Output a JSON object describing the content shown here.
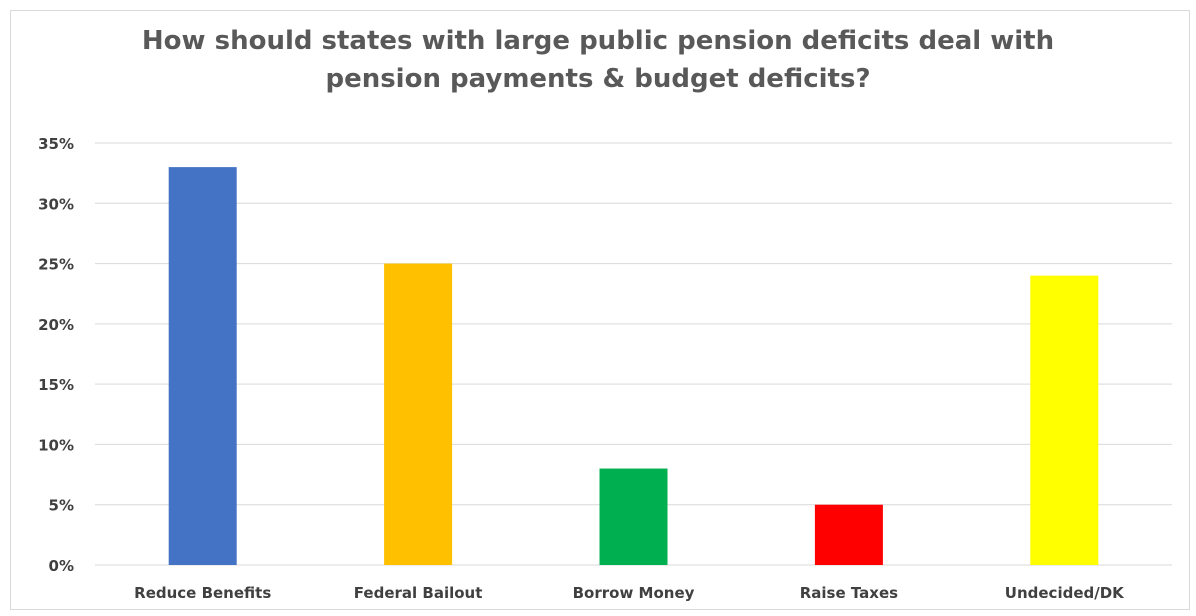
{
  "chart_data": {
    "type": "bar",
    "title_lines": [
      "How should states with large public pension deficits deal with",
      "pension payments & budget deficits?"
    ],
    "categories": [
      "Reduce Benefits",
      "Federal Bailout",
      "Borrow Money",
      "Raise Taxes",
      "Undecided/DK"
    ],
    "values": [
      33,
      25,
      8,
      5,
      24
    ],
    "colors": [
      "#4472C4",
      "#FFC000",
      "#00B050",
      "#FF0000",
      "#FFFF00"
    ],
    "ylim": [
      0,
      35
    ],
    "yticks": [
      0,
      5,
      10,
      15,
      20,
      25,
      30,
      35
    ],
    "ytick_labels": [
      "0%",
      "5%",
      "10%",
      "15%",
      "20%",
      "25%",
      "30%",
      "35%"
    ],
    "grid": true,
    "legend": "none",
    "xlabel": "",
    "ylabel": ""
  }
}
